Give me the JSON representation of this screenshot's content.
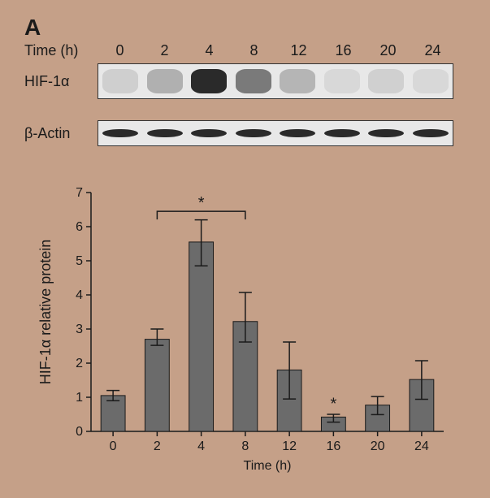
{
  "panel": "A",
  "time_label": "Time (h)",
  "timepoints": [
    "0",
    "2",
    "4",
    "8",
    "12",
    "16",
    "20",
    "24"
  ],
  "blots": [
    {
      "label": "HIF-1α",
      "height": 44,
      "lane_intensity": [
        "#cfcfcf",
        "#b0b0b0",
        "#2a2a2a",
        "#7a7a7a",
        "#b5b5b5",
        "#d8d8d8",
        "#d0d0d0",
        "#d8d8d8"
      ]
    },
    {
      "label": "β-Actin",
      "height": 32,
      "lane_intensity": [
        "#2a2a2a",
        "#2a2a2a",
        "#2a2a2a",
        "#2a2a2a",
        "#2a2a2a",
        "#2a2a2a",
        "#2a2a2a",
        "#2a2a2a"
      ]
    }
  ],
  "chart": {
    "type": "bar",
    "ylabel": "HIF-1α relative protein",
    "xlabel": "Time (h)",
    "categories": [
      "0",
      "2",
      "4",
      "8",
      "12",
      "16",
      "20",
      "24"
    ],
    "values": [
      1.05,
      2.7,
      5.55,
      3.22,
      1.8,
      0.42,
      0.77,
      1.52
    ],
    "err_upper": [
      0.15,
      0.3,
      0.65,
      0.85,
      0.82,
      0.08,
      0.25,
      0.55
    ],
    "err_lower": [
      0.15,
      0.18,
      0.7,
      0.6,
      0.85,
      0.15,
      0.28,
      0.58
    ],
    "ylim": [
      0,
      7
    ],
    "ytick_step": 1,
    "bar_color": "#6b6b6b",
    "bar_width": 0.55,
    "axis_color": "#1a1a1a",
    "background_color": "#c5a088",
    "label_fontsize": 18,
    "tick_fontsize": 16,
    "significance": [
      {
        "type": "bracket",
        "from": 1,
        "to": 3,
        "label": "*",
        "y": 6.45
      },
      {
        "type": "point",
        "at": 5,
        "label": "*",
        "y": 0.65
      }
    ]
  }
}
